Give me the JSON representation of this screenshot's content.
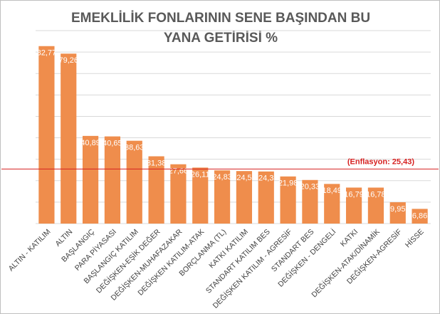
{
  "chart_data": {
    "type": "bar",
    "title": [
      "EMEKLİLİK FONLARININ SENE BAŞINDAN BU",
      "YANA GETİRİSİ %"
    ],
    "categories": [
      "ALTIN - KATILIM",
      "ALTIN",
      "BAŞLANGIÇ",
      "PARA PİYASASI",
      "BAŞLANGIÇ KATILIM",
      "DEĞİŞKEN-EŞİK DEĞER",
      "DEĞİŞKEN-MUHAFAZAKAR",
      "DEĞİŞKEN KATILIM-ATAK",
      "BORÇLANMA (TL)",
      "KATKI KATILIM",
      "STANDART KATILIM BES",
      "DEĞİŞKEN KATILIM - AGRESİF",
      "STANDART BES",
      "DEĞİŞKEN - DENGELİ",
      "KATKI",
      "DEĞİŞKEN-ATAK/DİNAMİK",
      "DEĞİŞKEN-AGRESİF",
      "HİSSE"
    ],
    "values": [
      82.77,
      79.26,
      40.89,
      40.65,
      38.63,
      31.38,
      27.66,
      26.11,
      24.83,
      24.5,
      24.3,
      21.98,
      20.33,
      18.49,
      16.79,
      16.78,
      9.95,
      6.86
    ],
    "value_labels": [
      "82,77",
      "79,26",
      "40,89",
      "40,65",
      "38,63",
      "31,38",
      "27,66",
      "26,11",
      "24,83",
      "24,5",
      "24,3",
      "21,98",
      "20,33",
      "18,49",
      "16,79",
      "16,78",
      "9,95",
      "6,86"
    ],
    "color": "#ef8d4c",
    "ylim": [
      0,
      90
    ],
    "yticks": [
      0,
      10,
      20,
      30,
      40,
      50,
      60,
      70,
      80,
      90
    ],
    "grid": true,
    "reference_line": {
      "value": 25.43,
      "label": "(Enflasyon: 25,43)",
      "color": "#d62020"
    }
  }
}
